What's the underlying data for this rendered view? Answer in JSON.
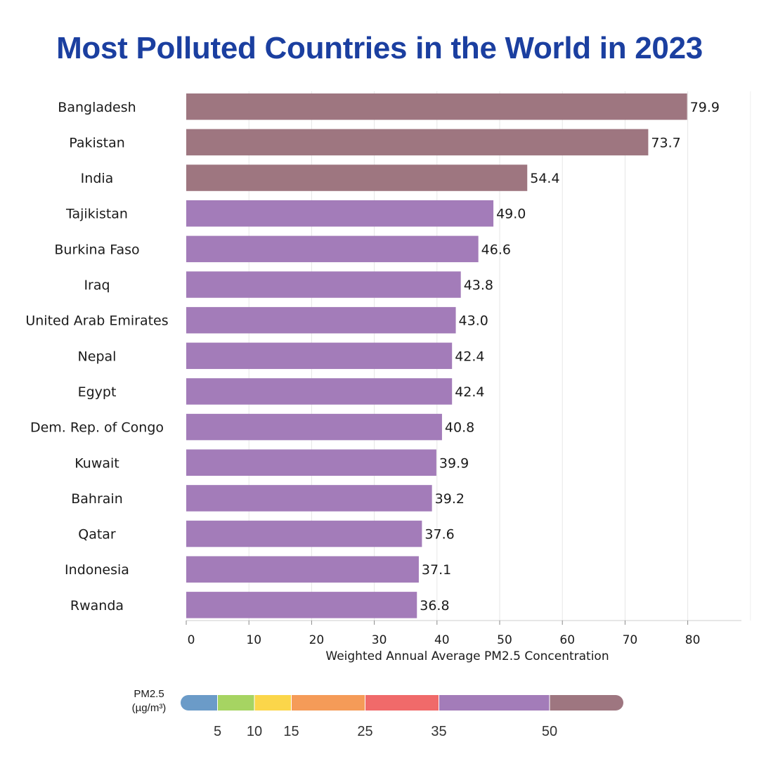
{
  "title": "Most Polluted Countries in the World in 2023",
  "colors": {
    "title": "#1b3fa0",
    "grid": "#e6e6e6"
  },
  "chart_data": {
    "type": "bar",
    "orientation": "horizontal",
    "title": "Most Polluted Countries in the World in 2023",
    "xlabel": "Weighted Annual Average PM2.5 Concentration",
    "ylabel": "",
    "xlim": [
      0,
      90
    ],
    "xticks": [
      "0",
      "10",
      "20",
      "30",
      "40",
      "50",
      "60",
      "70",
      "80"
    ],
    "grid": "vertical",
    "categories": [
      "Bangladesh",
      "Pakistan",
      "India",
      "Tajikistan",
      "Burkina Faso",
      "Iraq",
      "United Arab Emirates",
      "Nepal",
      "Egypt",
      "Dem. Rep. of Congo",
      "Kuwait",
      "Bahrain",
      "Qatar",
      "Indonesia",
      "Rwanda"
    ],
    "values": [
      79.9,
      73.7,
      54.4,
      49.0,
      46.6,
      43.8,
      43.0,
      42.4,
      42.4,
      40.8,
      39.9,
      39.2,
      37.6,
      37.1,
      36.8
    ],
    "value_labels": [
      "79.9",
      "73.7",
      "54.4",
      "49.0",
      "46.6",
      "43.8",
      "43.0",
      "42.4",
      "42.4",
      "40.8",
      "39.9",
      "39.2",
      "37.6",
      "37.1",
      "36.8"
    ],
    "legend": {
      "title_lines": [
        "PM2.5",
        "(µg/m³)"
      ],
      "placement": "bottom",
      "tick_labels": [
        "5",
        "10",
        "15",
        "25",
        "35",
        "50"
      ],
      "bands": [
        {
          "from": 0,
          "to": 5,
          "color": "#6b9bc8"
        },
        {
          "from": 5,
          "to": 10,
          "color": "#a6d462"
        },
        {
          "from": 10,
          "to": 15,
          "color": "#fbd64a"
        },
        {
          "from": 15,
          "to": 25,
          "color": "#f59b58"
        },
        {
          "from": 25,
          "to": 35,
          "color": "#f06a6a"
        },
        {
          "from": 35,
          "to": 50,
          "color": "#a37cb9"
        },
        {
          "from": 50,
          "to": 60,
          "color": "#9e7680"
        }
      ]
    }
  }
}
